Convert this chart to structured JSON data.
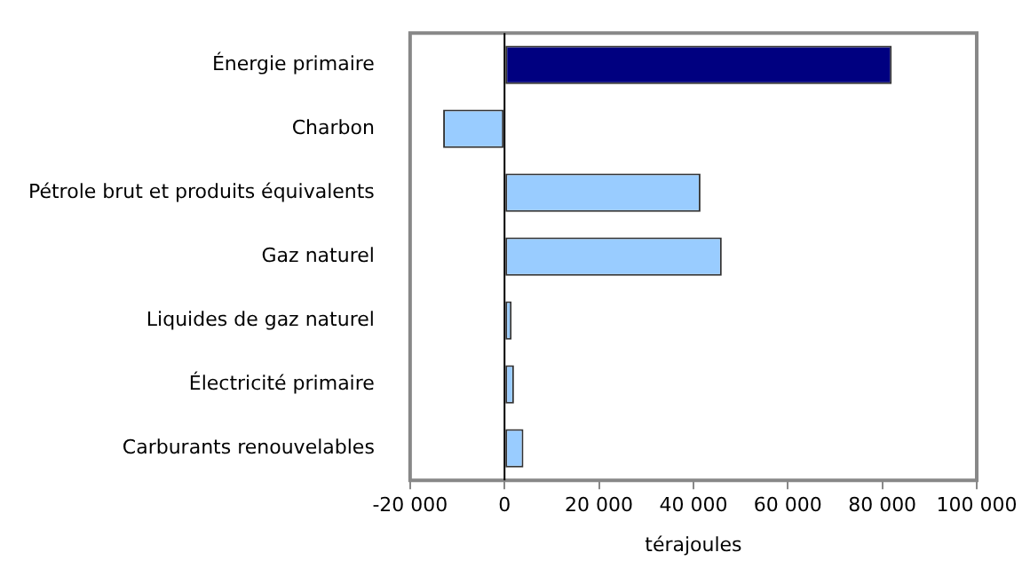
{
  "chart_data": {
    "type": "bar",
    "orientation": "horizontal",
    "xlabel": "térajoules",
    "categories": [
      "Énergie primaire",
      "Charbon",
      "Pétrole brut et produits équivalents",
      "Gaz naturel",
      "Liquides de gaz naturel",
      "Électricité primaire",
      "Carburants renouvelables"
    ],
    "values": [
      82000,
      -13000,
      41500,
      46000,
      1500,
      2000,
      4000
    ],
    "colors": [
      "#000080",
      "#99ccff",
      "#99ccff",
      "#99ccff",
      "#99ccff",
      "#99ccff",
      "#99ccff"
    ],
    "xlim": [
      -20000,
      100000
    ],
    "xticks": [
      -20000,
      0,
      20000,
      40000,
      60000,
      80000,
      100000
    ],
    "legend": false
  }
}
